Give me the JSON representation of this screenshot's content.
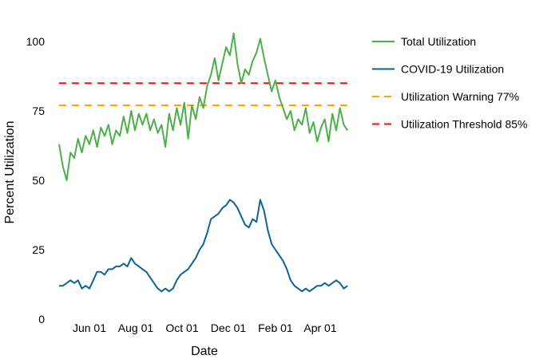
{
  "chart_data": {
    "type": "line",
    "title": "",
    "xlabel": "Date",
    "ylabel": "Percent Utilization",
    "ylim": [
      0,
      104
    ],
    "yticks": [
      0,
      25,
      50,
      75,
      100
    ],
    "xticks": [
      {
        "date": "2020-06-01",
        "label": "Jun 01"
      },
      {
        "date": "2020-08-01",
        "label": "Aug 01"
      },
      {
        "date": "2020-10-01",
        "label": "Oct 01"
      },
      {
        "date": "2020-12-01",
        "label": "Dec 01"
      },
      {
        "date": "2021-02-01",
        "label": "Feb 01"
      },
      {
        "date": "2021-04-01",
        "label": "Apr 01"
      }
    ],
    "grid": false,
    "legend_position": "right",
    "x_start": "2020-04-22",
    "x_step_days": 5,
    "series": [
      {
        "name": "Total Utilization",
        "color": "#4daf4a",
        "style": "solid",
        "values": [
          63,
          55,
          50,
          60,
          58,
          65,
          60,
          66,
          63,
          68,
          62,
          69,
          66,
          70,
          63,
          68,
          66,
          73,
          67,
          75,
          68,
          74,
          70,
          74,
          68,
          72,
          67,
          70,
          62,
          74,
          68,
          76,
          70,
          78,
          65,
          77,
          72,
          80,
          76,
          84,
          88,
          94,
          86,
          92,
          98,
          95,
          103,
          92,
          85,
          90,
          88,
          93,
          96,
          101,
          94,
          88,
          82,
          86,
          80,
          76,
          72,
          75,
          68,
          72,
          70,
          76,
          67,
          71,
          64,
          69,
          72,
          64,
          74,
          68,
          76,
          70,
          68
        ]
      },
      {
        "name": "COVID-19 Utilization",
        "color": "#0a6499",
        "style": "solid",
        "values": [
          12,
          12,
          13,
          14,
          13,
          14,
          11,
          12,
          11,
          14,
          17,
          17,
          16,
          18,
          18,
          19,
          19,
          20,
          19,
          22,
          20,
          19,
          18,
          17,
          15,
          13,
          11,
          10,
          11,
          10,
          11,
          14,
          16,
          17,
          18,
          20,
          22,
          25,
          27,
          31,
          36,
          37,
          38,
          40,
          41,
          43,
          42,
          40,
          37,
          34,
          33,
          36,
          35,
          43,
          39,
          32,
          27,
          25,
          23,
          21,
          18,
          14,
          12,
          11,
          10,
          11,
          10,
          11,
          12,
          12,
          13,
          12,
          13,
          14,
          13,
          11,
          12
        ]
      },
      {
        "name": "Utilization Warning 77%",
        "color": "#ffa500",
        "style": "dashed",
        "constant": 77
      },
      {
        "name": "Utilization Threshold 85%",
        "color": "#ee1111",
        "style": "dashed",
        "constant": 85
      }
    ]
  }
}
